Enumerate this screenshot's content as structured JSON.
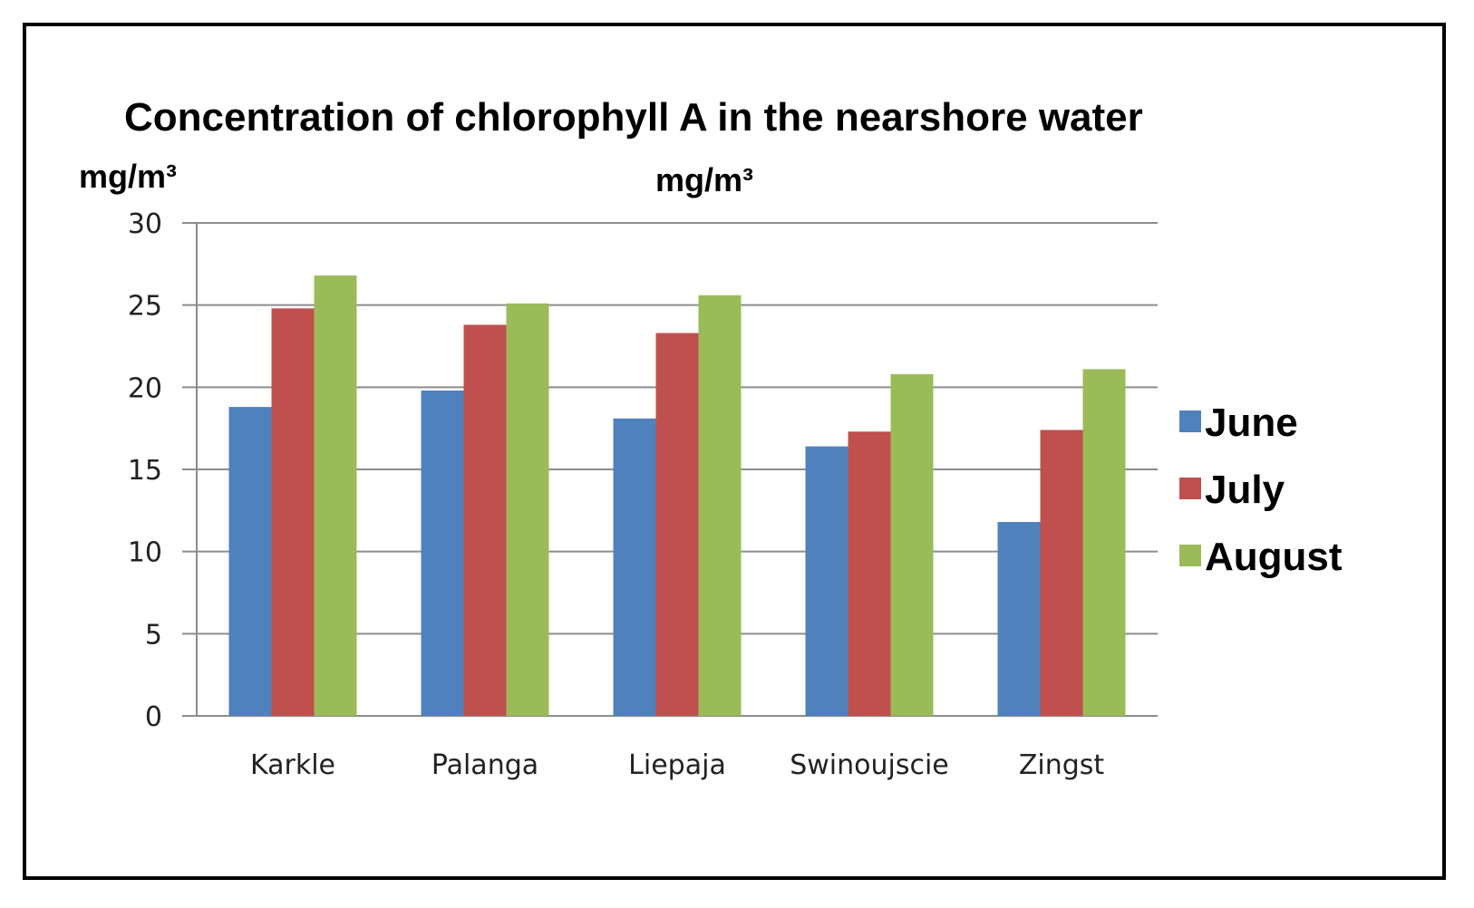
{
  "chart_data": {
    "type": "bar",
    "title": "Concentration of chlorophyll A  in the nearshore water",
    "ylabel": "mg/m³",
    "subtitle": "mg/m³",
    "xlabel": "",
    "ylim": [
      0,
      30
    ],
    "yticks": [
      0,
      5,
      10,
      15,
      20,
      25,
      30
    ],
    "grid": true,
    "legend_position": "right",
    "categories": [
      "Karkle",
      "Palanga",
      "Liepaja",
      "Swinoujscie",
      "Zingst"
    ],
    "series": [
      {
        "name": "June",
        "color": "#4f81bd",
        "values": [
          18.8,
          19.8,
          18.1,
          16.4,
          11.8
        ]
      },
      {
        "name": "July",
        "color": "#c0504d",
        "values": [
          24.8,
          23.8,
          23.3,
          17.3,
          17.4
        ]
      },
      {
        "name": "August",
        "color": "#9bbb59",
        "values": [
          26.8,
          25.1,
          25.6,
          20.8,
          21.1
        ]
      }
    ]
  }
}
